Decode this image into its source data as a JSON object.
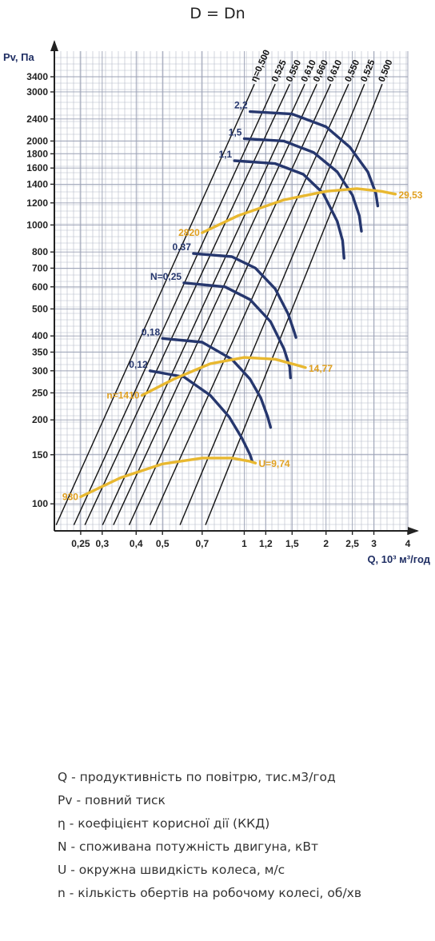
{
  "title": "D = Dn",
  "chart_data": {
    "type": "line",
    "xscale": "log",
    "yscale": "log",
    "xlim": [
      0.2,
      4
    ],
    "ylim": [
      80,
      4200
    ],
    "xlabel": "Q, 10³ м³/год",
    "ylabel": "Pv, Па",
    "x_ticks": [
      {
        "v": 0.25,
        "t": "0,25"
      },
      {
        "v": 0.3,
        "t": "0,3"
      },
      {
        "v": 0.4,
        "t": "0,4"
      },
      {
        "v": 0.5,
        "t": "0,5"
      },
      {
        "v": 0.7,
        "t": "0,7"
      },
      {
        "v": 1,
        "t": "1"
      },
      {
        "v": 1.2,
        "t": "1,2"
      },
      {
        "v": 1.5,
        "t": "1,5"
      },
      {
        "v": 2,
        "t": "2"
      },
      {
        "v": 2.5,
        "t": "2,5"
      },
      {
        "v": 3,
        "t": "3"
      },
      {
        "v": 4,
        "t": "4"
      }
    ],
    "y_ticks": [
      {
        "v": 100,
        "t": "100"
      },
      {
        "v": 150,
        "t": "150"
      },
      {
        "v": 200,
        "t": "200"
      },
      {
        "v": 250,
        "t": "250"
      },
      {
        "v": 300,
        "t": "300"
      },
      {
        "v": 350,
        "t": "350"
      },
      {
        "v": 400,
        "t": "400"
      },
      {
        "v": 500,
        "t": "500"
      },
      {
        "v": 600,
        "t": "600"
      },
      {
        "v": 700,
        "t": "700"
      },
      {
        "v": 800,
        "t": "800"
      },
      {
        "v": 1000,
        "t": "1000"
      },
      {
        "v": 1200,
        "t": "1200"
      },
      {
        "v": 1400,
        "t": "1400"
      },
      {
        "v": 1600,
        "t": "1600"
      },
      {
        "v": 1800,
        "t": "1800"
      },
      {
        "v": 2000,
        "t": "2000"
      },
      {
        "v": 2400,
        "t": "2400"
      },
      {
        "v": 3000,
        "t": "3000"
      },
      {
        "v": 3400,
        "t": "3400"
      }
    ],
    "efficiency_lines": [
      {
        "label": "η=0,500",
        "x1": 0.203,
        "y1": 84,
        "x2": 1.09,
        "y2": 3200
      },
      {
        "label": "0,525",
        "x1": 0.236,
        "y1": 84,
        "x2": 1.3,
        "y2": 3200
      },
      {
        "label": "0,550",
        "x1": 0.259,
        "y1": 84,
        "x2": 1.47,
        "y2": 3200
      },
      {
        "label": "0,610",
        "x1": 0.301,
        "y1": 84,
        "x2": 1.67,
        "y2": 3200
      },
      {
        "label": "0,660",
        "x1": 0.33,
        "y1": 84,
        "x2": 1.85,
        "y2": 3200
      },
      {
        "label": "0,610",
        "x1": 0.377,
        "y1": 84,
        "x2": 2.08,
        "y2": 3200
      },
      {
        "label": "0,550",
        "x1": 0.45,
        "y1": 84,
        "x2": 2.42,
        "y2": 3200
      },
      {
        "label": "0,525",
        "x1": 0.58,
        "y1": 84,
        "x2": 2.77,
        "y2": 3200
      },
      {
        "label": "0,500",
        "x1": 0.72,
        "y1": 84,
        "x2": 3.22,
        "y2": 3200
      }
    ],
    "power_curves": [
      {
        "label": "2,2",
        "points": [
          [
            1.05,
            2550
          ],
          [
            1.5,
            2500
          ],
          [
            2.0,
            2250
          ],
          [
            2.45,
            1900
          ],
          [
            2.85,
            1550
          ],
          [
            3.05,
            1300
          ],
          [
            3.1,
            1170
          ]
        ]
      },
      {
        "label": "1,5",
        "points": [
          [
            1.0,
            2040
          ],
          [
            1.4,
            2000
          ],
          [
            1.8,
            1820
          ],
          [
            2.2,
            1550
          ],
          [
            2.5,
            1280
          ],
          [
            2.65,
            1080
          ],
          [
            2.7,
            950
          ]
        ]
      },
      {
        "label": "1,1",
        "points": [
          [
            0.92,
            1700
          ],
          [
            1.3,
            1660
          ],
          [
            1.65,
            1520
          ],
          [
            1.95,
            1300
          ],
          [
            2.2,
            1030
          ],
          [
            2.3,
            880
          ],
          [
            2.33,
            760
          ]
        ]
      },
      {
        "label": "0,37",
        "points": [
          [
            0.65,
            790
          ],
          [
            0.9,
            770
          ],
          [
            1.1,
            700
          ],
          [
            1.3,
            590
          ],
          [
            1.45,
            480
          ],
          [
            1.52,
            420
          ],
          [
            1.55,
            395
          ]
        ]
      },
      {
        "label": "N=0,25",
        "points": [
          [
            0.6,
            620
          ],
          [
            0.85,
            600
          ],
          [
            1.05,
            540
          ],
          [
            1.25,
            450
          ],
          [
            1.4,
            360
          ],
          [
            1.47,
            310
          ],
          [
            1.48,
            283
          ]
        ]
      },
      {
        "label": "0,18",
        "points": [
          [
            0.5,
            392
          ],
          [
            0.7,
            380
          ],
          [
            0.9,
            330
          ],
          [
            1.05,
            280
          ],
          [
            1.15,
            240
          ],
          [
            1.22,
            205
          ],
          [
            1.25,
            188
          ]
        ]
      },
      {
        "label": "0,12",
        "points": [
          [
            0.45,
            300
          ],
          [
            0.6,
            285
          ],
          [
            0.75,
            245
          ],
          [
            0.88,
            205
          ],
          [
            0.98,
            172
          ],
          [
            1.05,
            150
          ],
          [
            1.07,
            142
          ]
        ]
      }
    ],
    "speed_curves": [
      {
        "label": "2820",
        "end_label": "29,53",
        "points": [
          [
            0.7,
            938
          ],
          [
            0.95,
            1080
          ],
          [
            1.4,
            1230
          ],
          [
            2.0,
            1320
          ],
          [
            2.6,
            1350
          ],
          [
            3.2,
            1320
          ],
          [
            3.6,
            1290
          ]
        ]
      },
      {
        "label": "n=1410",
        "end_label": "14,77",
        "points": [
          [
            0.42,
            245
          ],
          [
            0.55,
            280
          ],
          [
            0.75,
            318
          ],
          [
            1.0,
            335
          ],
          [
            1.3,
            330
          ],
          [
            1.55,
            315
          ],
          [
            1.68,
            308
          ]
        ]
      },
      {
        "label": "930",
        "end_label": "U=9,74",
        "points": [
          [
            0.25,
            106
          ],
          [
            0.35,
            124
          ],
          [
            0.5,
            139
          ],
          [
            0.7,
            146
          ],
          [
            0.9,
            146
          ],
          [
            1.05,
            142
          ],
          [
            1.1,
            140
          ]
        ]
      }
    ],
    "colors": {
      "efficiency": "#111111",
      "power": "#26376e",
      "speed": "#e8b830",
      "speed_label": "#e0a020",
      "grid": "#b5bac8",
      "axis": "#222222"
    }
  },
  "legend": [
    "Q - продуктивність по повітрю, тис.м3/год",
    "Pv - повний тиск",
    "η - коефіцієнт корисної дії (ККД)",
    "N - споживана потужність двигуна, кВт",
    "U - окружна швидкість колеса, м/с",
    "n - кількість обертів на робочому колесі, об/хв"
  ]
}
